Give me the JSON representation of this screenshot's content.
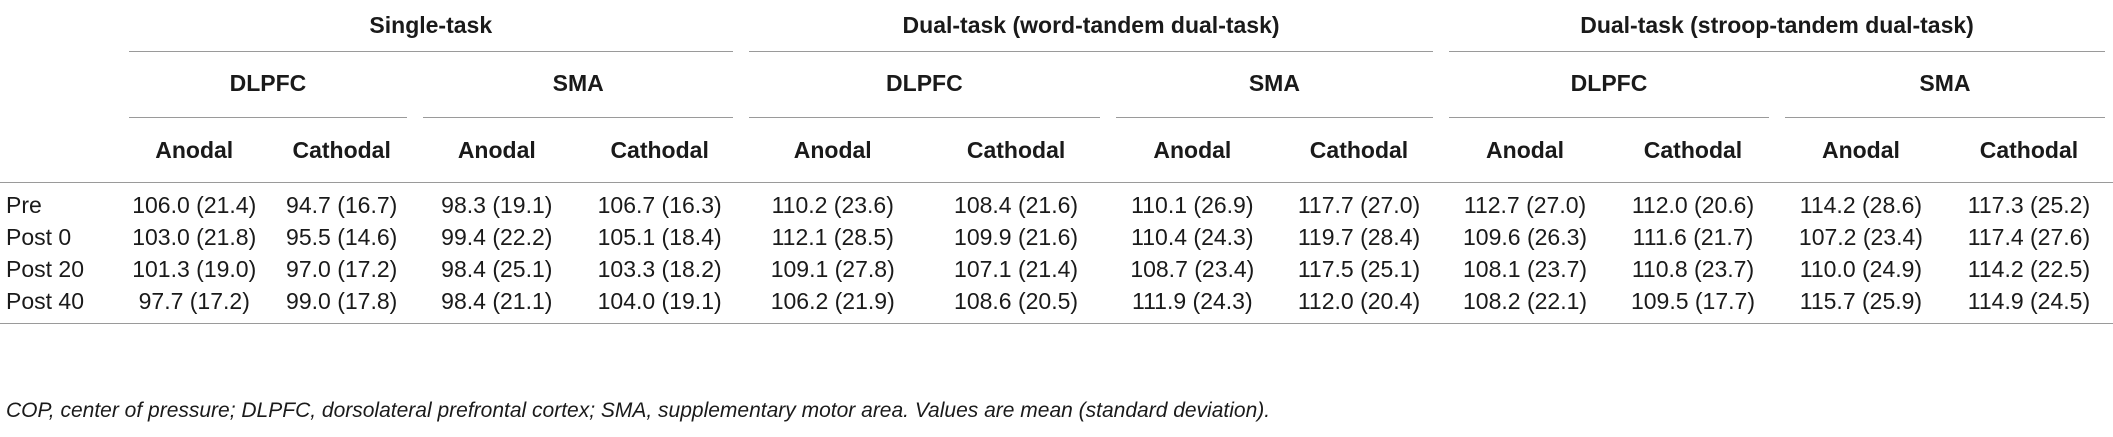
{
  "header": {
    "groups": [
      "Single-task",
      "Dual-task (word-tandem dual-task)",
      "Dual-task (stroop-tandem dual-task)"
    ],
    "regions": [
      "DLPFC",
      "SMA",
      "DLPFC",
      "SMA",
      "DLPFC",
      "SMA"
    ],
    "conditions": [
      "Anodal",
      "Cathodal",
      "Anodal",
      "Cathodal",
      "Anodal",
      "Cathodal",
      "Anodal",
      "Cathodal",
      "Anodal",
      "Cathodal",
      "Anodal",
      "Cathodal"
    ]
  },
  "rows": [
    {
      "label": "Pre",
      "values": [
        "106.0 (21.4)",
        "94.7 (16.7)",
        "98.3 (19.1)",
        "106.7 (16.3)",
        "110.2 (23.6)",
        "108.4 (21.6)",
        "110.1 (26.9)",
        "117.7 (27.0)",
        "112.7 (27.0)",
        "112.0 (20.6)",
        "114.2 (28.6)",
        "117.3 (25.2)"
      ]
    },
    {
      "label": "Post 0",
      "values": [
        "103.0 (21.8)",
        "95.5 (14.6)",
        "99.4 (22.2)",
        "105.1 (18.4)",
        "112.1 (28.5)",
        "109.9 (21.6)",
        "110.4 (24.3)",
        "119.7 (28.4)",
        "109.6 (26.3)",
        "111.6 (21.7)",
        "107.2 (23.4)",
        "117.4 (27.6)"
      ]
    },
    {
      "label": "Post 20",
      "values": [
        "101.3 (19.0)",
        "97.0 (17.2)",
        "98.4 (25.1)",
        "103.3 (18.2)",
        "109.1 (27.8)",
        "107.1 (21.4)",
        "108.7 (23.4)",
        "117.5 (25.1)",
        "108.1 (23.7)",
        "110.8 (23.7)",
        "110.0 (24.9)",
        "114.2 (22.5)"
      ]
    },
    {
      "label": "Post 40",
      "values": [
        "97.7 (17.2)",
        "99.0 (17.8)",
        "98.4 (21.1)",
        "104.0 (19.1)",
        "106.2 (21.9)",
        "108.6 (20.5)",
        "111.9 (24.3)",
        "112.0 (20.4)",
        "108.2 (22.1)",
        "109.5 (17.7)",
        "115.7 (25.9)",
        "114.9 (24.5)"
      ]
    }
  ],
  "footnote": "COP, center of pressure; DLPFC, dorsolateral prefrontal cortex; SMA, supplementary motor area. Values are mean (standard deviation)."
}
